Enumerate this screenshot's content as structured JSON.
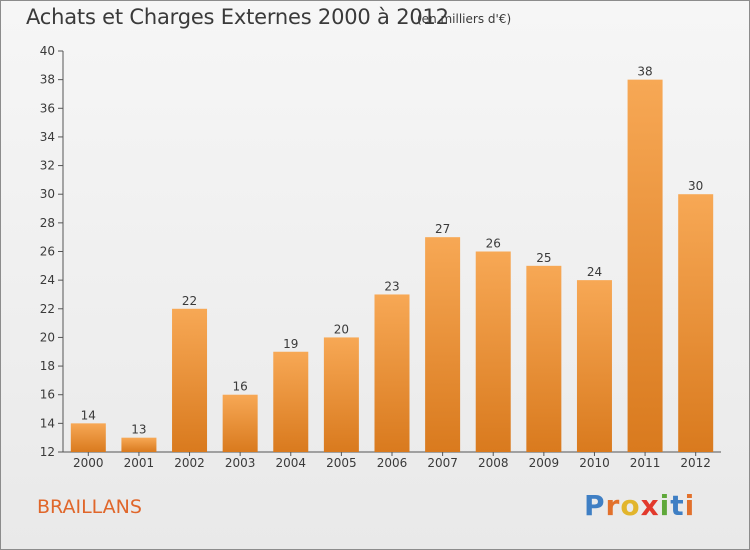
{
  "title": "Achats et Charges Externes 2000 à 2012",
  "subtitle": "(en milliers d'€)",
  "commune": "BRAILLANS",
  "logo": {
    "letters": [
      "P",
      "r",
      "o",
      "x",
      "i",
      "t",
      "i"
    ],
    "colors": [
      "#3f7fc4",
      "#e2712c",
      "#e2b52c",
      "#e2392c",
      "#5fa83a",
      "#3f7fc4",
      "#e2712c"
    ]
  },
  "colors": {
    "bar_top": "#f7a855",
    "bar_bottom": "#d97a1e",
    "commune": "#e0662a",
    "text": "#3a3a3a"
  },
  "chart_data": {
    "type": "bar",
    "title": "Achats et Charges Externes 2000 à 2012",
    "subtitle": "(en milliers d'€)",
    "categories": [
      "2000",
      "2001",
      "2002",
      "2003",
      "2004",
      "2005",
      "2006",
      "2007",
      "2008",
      "2009",
      "2010",
      "2011",
      "2012"
    ],
    "values": [
      14,
      13,
      22,
      16,
      19,
      20,
      23,
      27,
      26,
      25,
      24,
      38,
      30
    ],
    "ylim": [
      12,
      40
    ],
    "yticks": [
      12,
      14,
      16,
      18,
      20,
      22,
      24,
      26,
      28,
      30,
      32,
      34,
      36,
      38,
      40
    ],
    "grid": false,
    "data_labels": true
  }
}
